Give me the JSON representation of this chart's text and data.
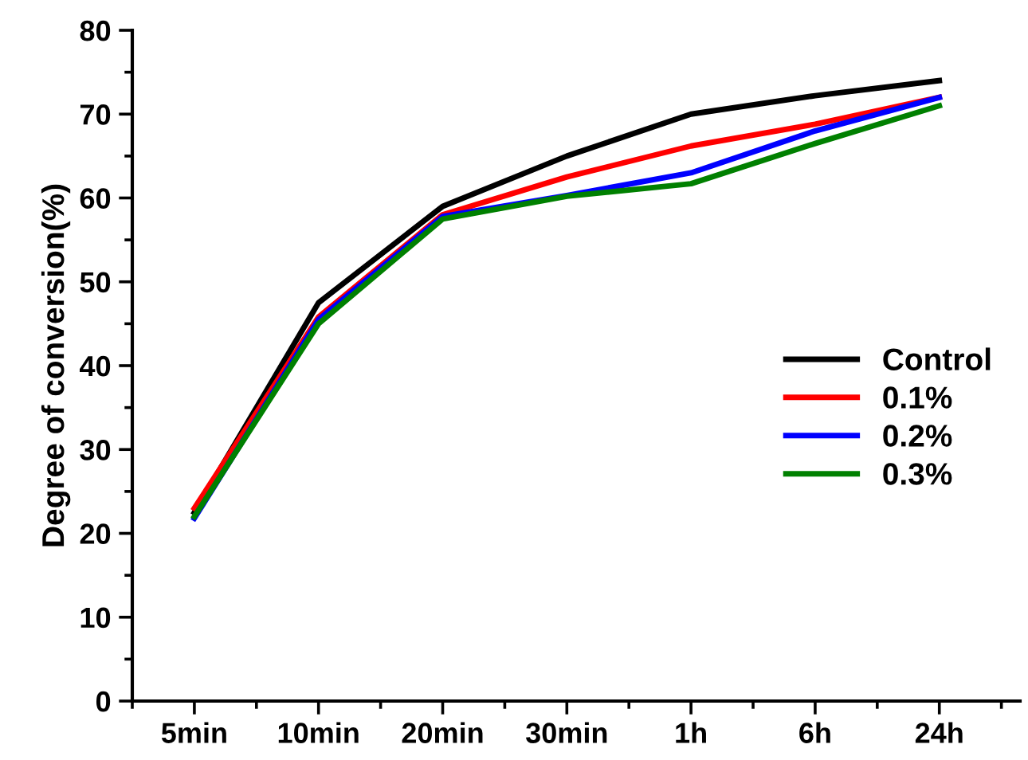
{
  "chart_data": {
    "type": "line",
    "ylabel": "Degree of conversion(%)",
    "categories": [
      "5min",
      "10min",
      "20min",
      "30min",
      "1h",
      "6h",
      "24h"
    ],
    "series": [
      {
        "name": "Control",
        "color": "#000000",
        "values": [
          22.5,
          47.5,
          59,
          65,
          70,
          72.2,
          74
        ]
      },
      {
        "name": "0.1%",
        "color": "#ff0000",
        "values": [
          23,
          45.8,
          58,
          62.5,
          66.2,
          68.8,
          72
        ]
      },
      {
        "name": "0.2%",
        "color": "#0000ff",
        "values": [
          21.8,
          45.5,
          57.8,
          60.3,
          63,
          68,
          72
        ]
      },
      {
        "name": "0.3%",
        "color": "#008000",
        "values": [
          22,
          45,
          57.5,
          60.2,
          61.7,
          66.5,
          71
        ]
      }
    ],
    "ylim": [
      0,
      80
    ],
    "yticks": [
      0,
      10,
      20,
      30,
      40,
      50,
      60,
      70,
      80
    ],
    "grid": false,
    "legend": "right",
    "marker": "none",
    "line_style": "solid"
  }
}
